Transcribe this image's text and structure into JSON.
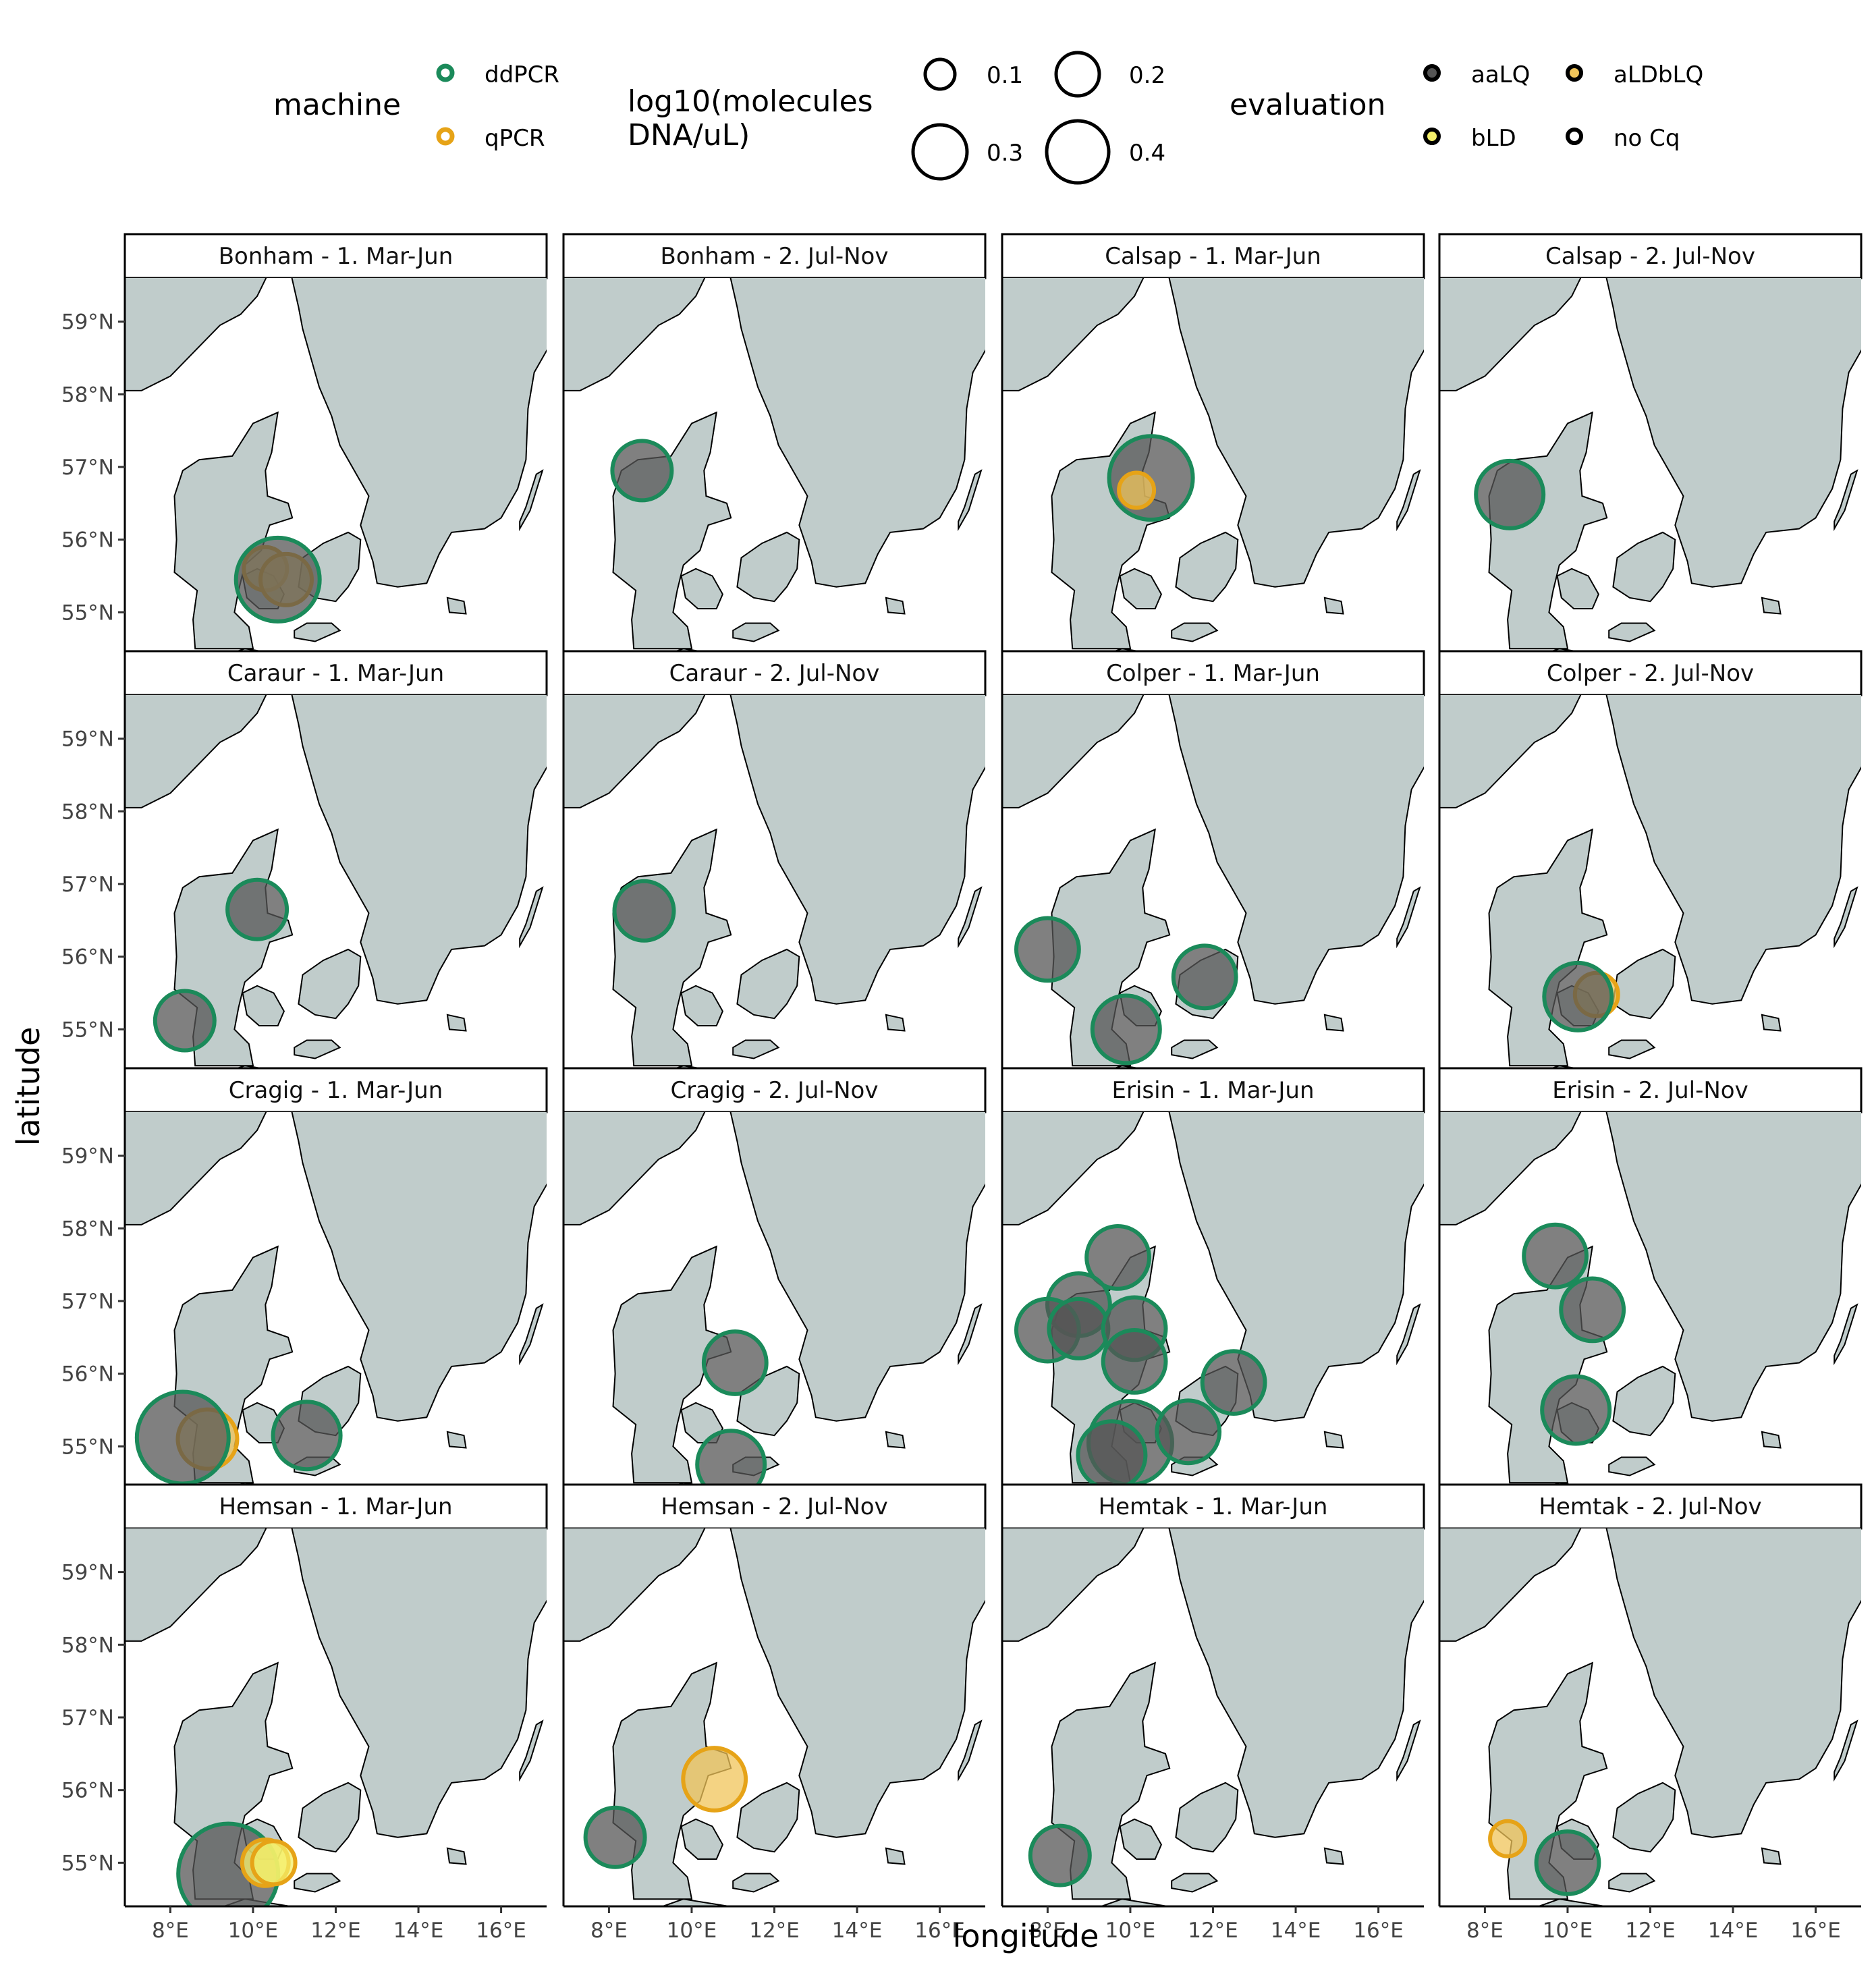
{
  "legend": {
    "machine_title": "machine",
    "machine_items": [
      {
        "label": "ddPCR",
        "color": "#1b8a5a"
      },
      {
        "label": "qPCR",
        "color": "#e6a317"
      }
    ],
    "size_title_line1": "log10(molecules",
    "size_title_line2": "DNA/uL)",
    "size_items": [
      {
        "label": "0.1",
        "value": 0.1
      },
      {
        "label": "0.2",
        "value": 0.2
      },
      {
        "label": "0.3",
        "value": 0.3
      },
      {
        "label": "0.4",
        "value": 0.4
      }
    ],
    "evaluation_title": "evaluation",
    "evaluation_items": [
      {
        "label": "aaLQ",
        "color": "#555555"
      },
      {
        "label": "aLDbLQ",
        "color": "#f0c45a"
      },
      {
        "label": "bLD",
        "color": "#f4ef6a"
      },
      {
        "label": "no Cq",
        "color": "#ffffff"
      }
    ]
  },
  "axes": {
    "xlabel": "longitude",
    "ylabel": "latitude",
    "x_ticks": [
      "8°E",
      "10°E",
      "12°E",
      "14°E",
      "16°E"
    ],
    "y_ticks": [
      "55°N",
      "56°N",
      "57°N",
      "58°N",
      "59°N"
    ]
  },
  "colors": {
    "land": "#c0cccb",
    "ddPCR": "#1b8a5a",
    "qPCR": "#e6a317",
    "aaLQ": "#555555",
    "aLDbLQ": "#f0c45a",
    "bLD": "#f4ef6a"
  },
  "chart_data": {
    "type": "scatter",
    "xlim": [
      6.9,
      17.1
    ],
    "ylim": [
      54.4,
      59.6
    ],
    "x_ticks": [
      8,
      10,
      12,
      14,
      16
    ],
    "y_ticks": [
      55,
      56,
      57,
      58,
      59
    ],
    "panels": [
      {
        "title": "Bonham - 1. Mar-Jun",
        "points": [
          {
            "lon": 10.3,
            "lat": 55.6,
            "machine": "qPCR",
            "evaluation": "aLDbLQ",
            "size": 0.1
          },
          {
            "lon": 10.8,
            "lat": 55.45,
            "machine": "qPCR",
            "evaluation": "aLDbLQ",
            "size": 0.15
          },
          {
            "lon": 10.6,
            "lat": 55.45,
            "machine": "ddPCR",
            "evaluation": "aaLQ",
            "size": 0.35
          }
        ]
      },
      {
        "title": "Bonham - 2. Jul-Nov",
        "points": [
          {
            "lon": 8.8,
            "lat": 56.95,
            "machine": "ddPCR",
            "evaluation": "aaLQ",
            "size": 0.2
          }
        ]
      },
      {
        "title": "Calsap - 1. Mar-Jun",
        "points": [
          {
            "lon": 10.5,
            "lat": 56.85,
            "machine": "ddPCR",
            "evaluation": "aaLQ",
            "size": 0.35
          },
          {
            "lon": 10.15,
            "lat": 56.68,
            "machine": "qPCR",
            "evaluation": "aLDbLQ",
            "size": 0.05
          }
        ]
      },
      {
        "title": "Calsap - 2. Jul-Nov",
        "points": [
          {
            "lon": 8.6,
            "lat": 56.62,
            "machine": "ddPCR",
            "evaluation": "aaLQ",
            "size": 0.25
          }
        ]
      },
      {
        "title": "Caraur - 1. Mar-Jun",
        "points": [
          {
            "lon": 10.1,
            "lat": 56.65,
            "machine": "ddPCR",
            "evaluation": "aaLQ",
            "size": 0.2
          },
          {
            "lon": 8.35,
            "lat": 55.12,
            "machine": "ddPCR",
            "evaluation": "aaLQ",
            "size": 0.2
          }
        ]
      },
      {
        "title": "Caraur - 2. Jul-Nov",
        "points": [
          {
            "lon": 8.85,
            "lat": 56.63,
            "machine": "ddPCR",
            "evaluation": "aaLQ",
            "size": 0.2
          }
        ]
      },
      {
        "title": "Colper - 1. Mar-Jun",
        "points": [
          {
            "lon": 8.0,
            "lat": 56.1,
            "machine": "ddPCR",
            "evaluation": "aaLQ",
            "size": 0.22
          },
          {
            "lon": 11.8,
            "lat": 55.72,
            "machine": "ddPCR",
            "evaluation": "aaLQ",
            "size": 0.22
          },
          {
            "lon": 9.9,
            "lat": 55.0,
            "machine": "ddPCR",
            "evaluation": "aaLQ",
            "size": 0.25
          }
        ]
      },
      {
        "title": "Colper - 2. Jul-Nov",
        "points": [
          {
            "lon": 10.7,
            "lat": 55.48,
            "machine": "qPCR",
            "evaluation": "aLDbLQ",
            "size": 0.1
          },
          {
            "lon": 10.25,
            "lat": 55.45,
            "machine": "ddPCR",
            "evaluation": "aaLQ",
            "size": 0.25
          }
        ]
      },
      {
        "title": "Cragig - 1. Mar-Jun",
        "points": [
          {
            "lon": 8.9,
            "lat": 55.1,
            "machine": "qPCR",
            "evaluation": "aLDbLQ",
            "size": 0.2
          },
          {
            "lon": 8.3,
            "lat": 55.12,
            "machine": "ddPCR",
            "evaluation": "aaLQ",
            "size": 0.4
          },
          {
            "lon": 11.3,
            "lat": 55.15,
            "machine": "ddPCR",
            "evaluation": "aaLQ",
            "size": 0.25
          }
        ]
      },
      {
        "title": "Cragig - 2. Jul-Nov",
        "points": [
          {
            "lon": 11.05,
            "lat": 56.15,
            "machine": "ddPCR",
            "evaluation": "aaLQ",
            "size": 0.22
          },
          {
            "lon": 10.95,
            "lat": 54.75,
            "machine": "ddPCR",
            "evaluation": "aaLQ",
            "size": 0.25
          }
        ]
      },
      {
        "title": "Erisin - 1. Mar-Jun",
        "points": [
          {
            "lon": 9.7,
            "lat": 57.6,
            "machine": "ddPCR",
            "evaluation": "aaLQ",
            "size": 0.22
          },
          {
            "lon": 8.75,
            "lat": 56.95,
            "machine": "ddPCR",
            "evaluation": "aaLQ",
            "size": 0.22
          },
          {
            "lon": 8.0,
            "lat": 56.6,
            "machine": "ddPCR",
            "evaluation": "aaLQ",
            "size": 0.22
          },
          {
            "lon": 8.75,
            "lat": 56.62,
            "machine": "ddPCR",
            "evaluation": "aaLQ",
            "size": 0.2
          },
          {
            "lon": 10.1,
            "lat": 56.62,
            "machine": "ddPCR",
            "evaluation": "aaLQ",
            "size": 0.22
          },
          {
            "lon": 10.1,
            "lat": 56.17,
            "machine": "ddPCR",
            "evaluation": "aaLQ",
            "size": 0.22
          },
          {
            "lon": 12.5,
            "lat": 55.88,
            "machine": "ddPCR",
            "evaluation": "aaLQ",
            "size": 0.22
          },
          {
            "lon": 10.0,
            "lat": 55.05,
            "machine": "ddPCR",
            "evaluation": "aaLQ",
            "size": 0.35
          },
          {
            "lon": 11.4,
            "lat": 55.2,
            "machine": "ddPCR",
            "evaluation": "aaLQ",
            "size": 0.22
          },
          {
            "lon": 9.55,
            "lat": 54.88,
            "machine": "ddPCR",
            "evaluation": "aaLQ",
            "size": 0.25
          }
        ]
      },
      {
        "title": "Erisin - 2. Jul-Nov",
        "points": [
          {
            "lon": 9.7,
            "lat": 57.62,
            "machine": "ddPCR",
            "evaluation": "aaLQ",
            "size": 0.22
          },
          {
            "lon": 10.6,
            "lat": 56.88,
            "machine": "ddPCR",
            "evaluation": "aaLQ",
            "size": 0.22
          },
          {
            "lon": 10.2,
            "lat": 55.5,
            "machine": "ddPCR",
            "evaluation": "aaLQ",
            "size": 0.25
          }
        ]
      },
      {
        "title": "Hemsan - 1. Mar-Jun",
        "points": [
          {
            "lon": 9.4,
            "lat": 54.85,
            "machine": "ddPCR",
            "evaluation": "aaLQ",
            "size": 0.45
          },
          {
            "lon": 10.3,
            "lat": 55.0,
            "machine": "qPCR",
            "evaluation": "bLD",
            "size": 0.12
          },
          {
            "lon": 10.5,
            "lat": 55.0,
            "machine": "qPCR",
            "evaluation": "bLD",
            "size": 0.1
          }
        ]
      },
      {
        "title": "Hemsan - 2. Jul-Nov",
        "points": [
          {
            "lon": 10.55,
            "lat": 56.15,
            "machine": "qPCR",
            "evaluation": "aLDbLQ",
            "size": 0.22
          },
          {
            "lon": 8.15,
            "lat": 55.35,
            "machine": "ddPCR",
            "evaluation": "aaLQ",
            "size": 0.2
          }
        ]
      },
      {
        "title": "Hemtak - 1. Mar-Jun",
        "points": [
          {
            "lon": 8.3,
            "lat": 55.1,
            "machine": "ddPCR",
            "evaluation": "aaLQ",
            "size": 0.2
          }
        ]
      },
      {
        "title": "Hemtak - 2. Jul-Nov",
        "points": [
          {
            "lon": 8.55,
            "lat": 55.33,
            "machine": "qPCR",
            "evaluation": "aLDbLQ",
            "size": 0.05
          },
          {
            "lon": 10.0,
            "lat": 55.0,
            "machine": "ddPCR",
            "evaluation": "aaLQ",
            "size": 0.22
          }
        ]
      }
    ]
  }
}
